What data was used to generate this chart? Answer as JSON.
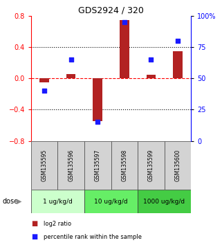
{
  "title": "GDS2924 / 320",
  "samples": [
    "GSM135595",
    "GSM135596",
    "GSM135597",
    "GSM135598",
    "GSM135599",
    "GSM135600"
  ],
  "log2_ratio": [
    -0.05,
    0.06,
    -0.55,
    0.75,
    0.05,
    0.35
  ],
  "percentile_rank": [
    40,
    65,
    15,
    95,
    65,
    80
  ],
  "bar_color": "#b22222",
  "dot_color": "#1a1aff",
  "ylim_left": [
    -0.8,
    0.8
  ],
  "ylim_right": [
    0,
    100
  ],
  "yticks_left": [
    -0.8,
    -0.4,
    0.0,
    0.4,
    0.8
  ],
  "yticks_right": [
    0,
    25,
    50,
    75,
    100
  ],
  "ytick_labels_right": [
    "0",
    "25",
    "50",
    "75",
    "100%"
  ],
  "hlines_dotted": [
    0.4,
    -0.4
  ],
  "hline_dashed": 0.0,
  "dose_groups": [
    {
      "label": "1 ug/kg/d",
      "samples": [
        0,
        1
      ],
      "color": "#ccffcc"
    },
    {
      "label": "10 ug/kg/d",
      "samples": [
        2,
        3
      ],
      "color": "#66ee66"
    },
    {
      "label": "1000 ug/kg/d",
      "samples": [
        4,
        5
      ],
      "color": "#44cc44"
    }
  ],
  "sample_bg_color": "#d3d3d3",
  "legend_labels": [
    "log2 ratio",
    "percentile rank within the sample"
  ],
  "dose_label": "dose",
  "bar_width": 0.35,
  "dot_size": 25
}
